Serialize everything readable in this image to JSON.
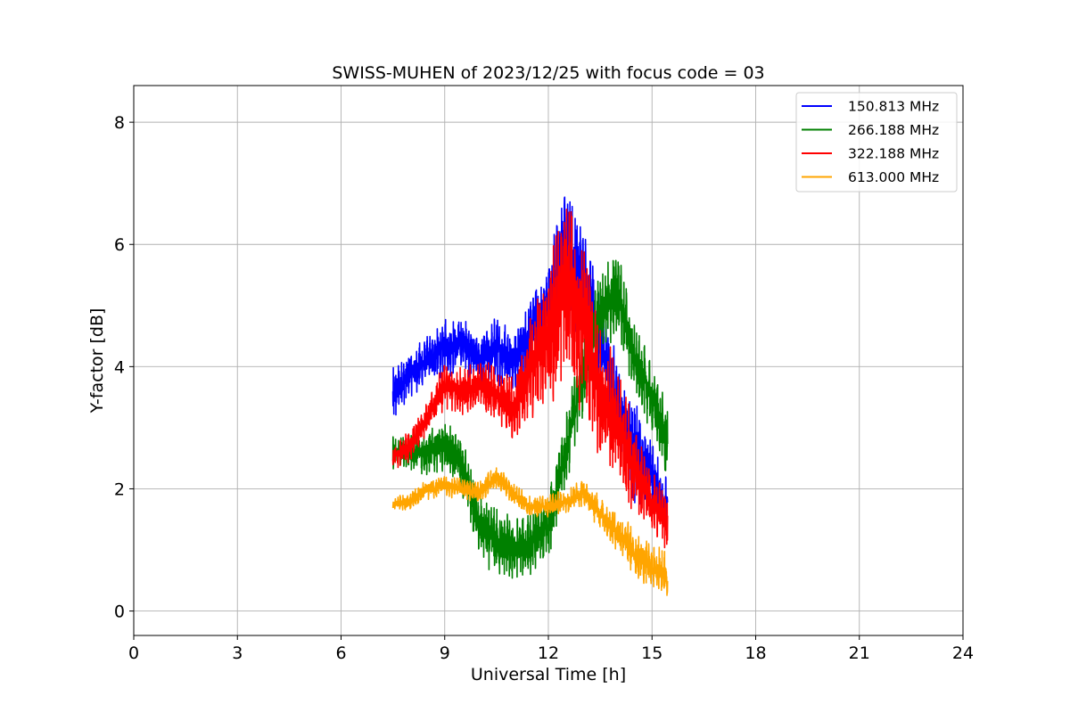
{
  "chart_data": {
    "type": "line",
    "title": "SWISS-MUHEN of 2023/12/25 with focus code = 03",
    "xlabel": "Universal Time [h]",
    "ylabel": "Y-factor [dB]",
    "xlim": [
      0,
      24
    ],
    "ylim": [
      -0.4,
      8.6
    ],
    "xticks": [
      0,
      3,
      6,
      9,
      12,
      15,
      18,
      21,
      24
    ],
    "yticks": [
      0,
      2,
      4,
      6,
      8
    ],
    "grid": true,
    "legend_position": "top-right",
    "series": [
      {
        "name": "150.813 MHz",
        "color": "#0000ff",
        "x": [
          7.5,
          8.0,
          8.5,
          9.0,
          9.5,
          10.0,
          10.5,
          11.0,
          11.5,
          12.0,
          12.5,
          13.0,
          13.5,
          14.0,
          14.5,
          15.0,
          15.45
        ],
        "y": [
          3.5,
          3.9,
          4.1,
          4.3,
          4.4,
          4.1,
          4.3,
          4.1,
          4.6,
          5.0,
          5.8,
          5.4,
          4.4,
          3.3,
          2.6,
          2.2,
          1.7
        ],
        "spread": [
          0.5,
          0.4,
          0.4,
          0.5,
          0.5,
          0.4,
          0.6,
          0.5,
          0.6,
          0.8,
          1.3,
          1.0,
          0.9,
          0.8,
          0.9,
          0.6,
          0.5
        ]
      },
      {
        "name": "266.188 MHz",
        "color": "#008000",
        "x": [
          7.5,
          8.0,
          8.5,
          9.0,
          9.5,
          10.0,
          10.5,
          11.0,
          11.5,
          12.0,
          12.5,
          13.0,
          13.5,
          14.0,
          14.5,
          15.0,
          15.45
        ],
        "y": [
          2.6,
          2.6,
          2.6,
          2.7,
          2.4,
          1.4,
          1.1,
          1.0,
          1.1,
          1.4,
          2.6,
          3.9,
          4.9,
          5.2,
          4.1,
          3.5,
          2.7
        ],
        "spread": [
          0.3,
          0.3,
          0.4,
          0.4,
          0.5,
          0.5,
          0.6,
          0.6,
          0.5,
          0.6,
          0.6,
          0.7,
          0.7,
          0.8,
          0.6,
          0.6,
          0.7
        ]
      },
      {
        "name": "322.188 MHz",
        "color": "#ff0000",
        "x": [
          7.5,
          8.0,
          8.5,
          9.0,
          9.5,
          10.0,
          10.5,
          11.0,
          11.5,
          12.0,
          12.5,
          13.0,
          13.5,
          14.0,
          14.5,
          15.0,
          15.45
        ],
        "y": [
          2.5,
          2.7,
          3.2,
          3.7,
          3.6,
          3.7,
          3.6,
          3.3,
          4.0,
          4.5,
          5.4,
          4.7,
          3.6,
          3.0,
          2.3,
          1.8,
          1.4
        ],
        "spread": [
          0.2,
          0.3,
          0.3,
          0.4,
          0.4,
          0.4,
          0.5,
          0.6,
          0.9,
          1.2,
          1.7,
          1.6,
          1.2,
          1.0,
          0.8,
          0.5,
          0.5
        ]
      },
      {
        "name": "613.000 MHz",
        "color": "#ffa500",
        "x": [
          7.5,
          8.0,
          8.5,
          9.0,
          9.5,
          10.0,
          10.5,
          11.0,
          11.5,
          12.0,
          12.5,
          13.0,
          13.5,
          14.0,
          14.5,
          15.0,
          15.45
        ],
        "y": [
          1.75,
          1.8,
          2.0,
          2.05,
          2.0,
          1.95,
          2.2,
          1.9,
          1.7,
          1.7,
          1.8,
          1.95,
          1.6,
          1.3,
          0.95,
          0.7,
          0.6
        ],
        "spread": [
          0.12,
          0.15,
          0.18,
          0.18,
          0.18,
          0.18,
          0.2,
          0.18,
          0.18,
          0.2,
          0.2,
          0.25,
          0.3,
          0.35,
          0.4,
          0.4,
          0.4
        ]
      }
    ]
  }
}
